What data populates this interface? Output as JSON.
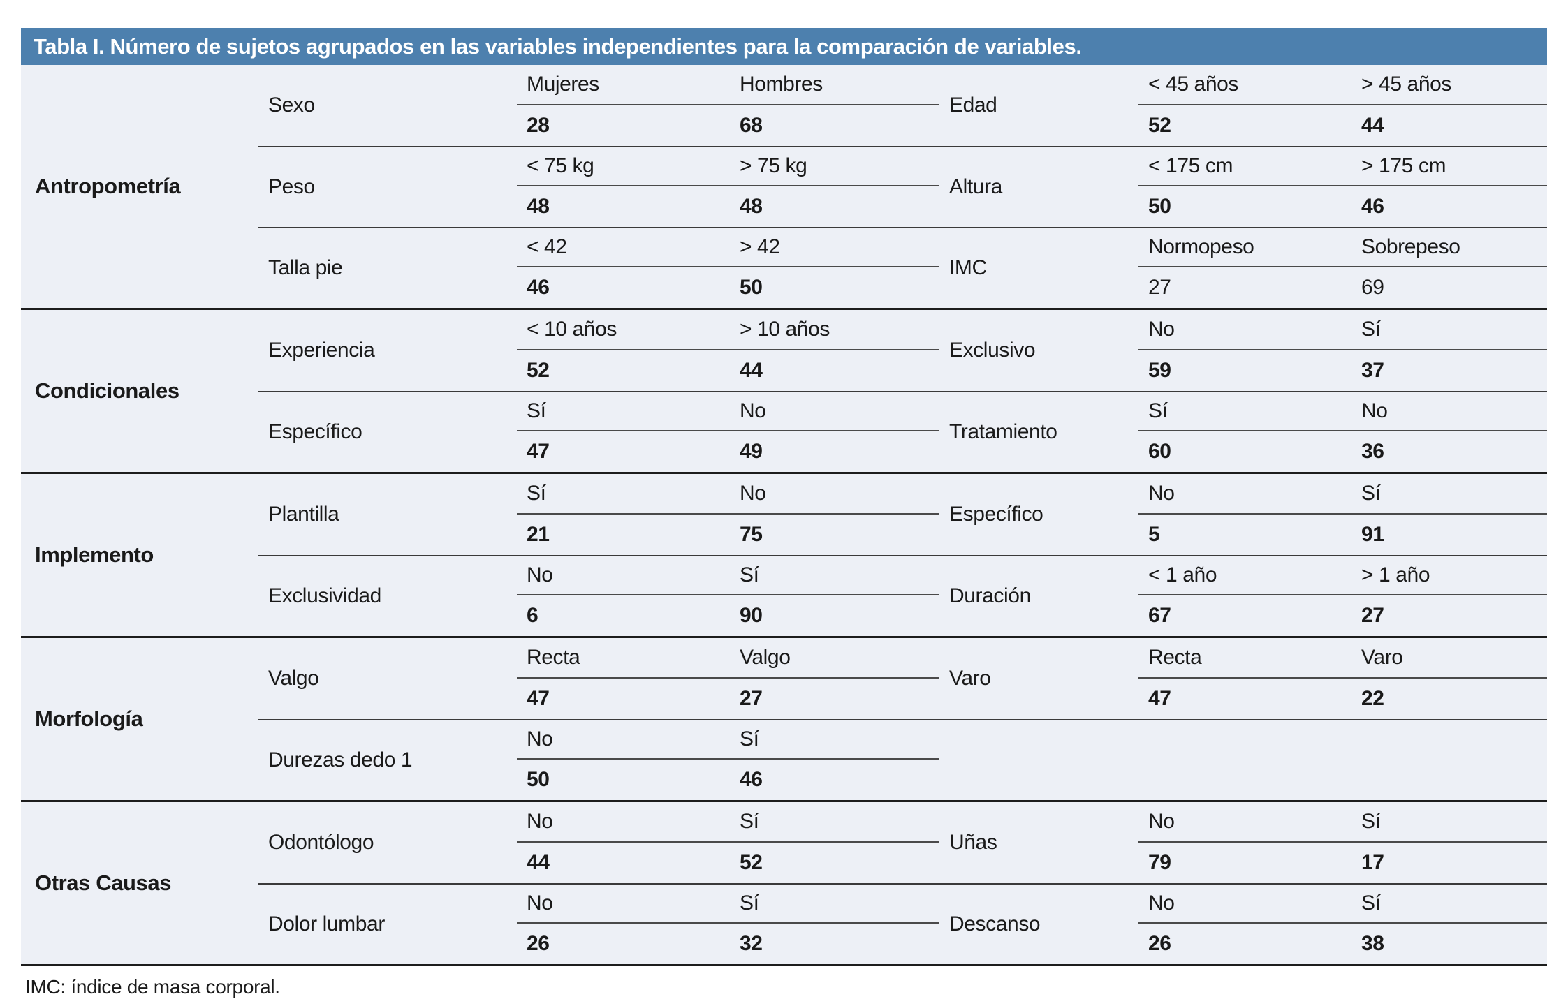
{
  "title": "Tabla I. Número de sujetos agrupados en las variables independientes para la comparación de variables.",
  "footnote": "IMC: índice de masa corporal.",
  "colors": {
    "header_bg": "#4D80AE",
    "header_text": "#ffffff",
    "body_bg": "#EDF0F6",
    "text": "#1a1a1a",
    "line_group": "#1d1d1d",
    "line_row": "#3a3a3a",
    "line_mid": "#4a4a4a"
  },
  "table": {
    "groups": [
      {
        "name": "Antropometría",
        "rows": [
          {
            "left": {
              "variable": "Sexo",
              "labels": [
                "Mujeres",
                "Hombres"
              ],
              "values": [
                "28",
                "68"
              ]
            },
            "right": {
              "variable": "Edad",
              "labels": [
                "< 45 años",
                "> 45 años"
              ],
              "values": [
                "52",
                "44"
              ]
            }
          },
          {
            "left": {
              "variable": "Peso",
              "labels": [
                "< 75 kg",
                "> 75 kg"
              ],
              "values": [
                "48",
                "48"
              ]
            },
            "right": {
              "variable": "Altura",
              "labels": [
                "< 175 cm",
                "> 175 cm"
              ],
              "values": [
                "50",
                "46"
              ]
            }
          },
          {
            "left": {
              "variable": "Talla pie",
              "labels": [
                "< 42",
                "> 42"
              ],
              "values": [
                "46",
                "50"
              ]
            },
            "right": {
              "variable": "IMC",
              "labels": [
                "Normopeso",
                "Sobrepeso"
              ],
              "values": [
                "27",
                "69"
              ],
              "values_bold": false
            }
          }
        ]
      },
      {
        "name": "Condicionales",
        "rows": [
          {
            "left": {
              "variable": "Experiencia",
              "labels": [
                "< 10 años",
                "> 10 años"
              ],
              "values": [
                "52",
                "44"
              ]
            },
            "right": {
              "variable": "Exclusivo",
              "labels": [
                "No",
                "Sí"
              ],
              "values": [
                "59",
                "37"
              ]
            }
          },
          {
            "left": {
              "variable": "Específico",
              "labels": [
                "Sí",
                "No"
              ],
              "values": [
                "47",
                "49"
              ]
            },
            "right": {
              "variable": "Tratamiento",
              "labels": [
                "Sí",
                "No"
              ],
              "values": [
                "60",
                "36"
              ]
            }
          }
        ]
      },
      {
        "name": "Implemento",
        "rows": [
          {
            "left": {
              "variable": "Plantilla",
              "labels": [
                "Sí",
                "No"
              ],
              "values": [
                "21",
                "75"
              ]
            },
            "right": {
              "variable": "Específico",
              "labels": [
                "No",
                "Sí"
              ],
              "values": [
                "5",
                "91"
              ]
            }
          },
          {
            "left": {
              "variable": "Exclusividad",
              "labels": [
                "No",
                "Sí"
              ],
              "values": [
                "6",
                "90"
              ]
            },
            "right": {
              "variable": "Duración",
              "labels": [
                "< 1 año",
                "> 1 año"
              ],
              "values": [
                "67",
                "27"
              ]
            }
          }
        ]
      },
      {
        "name": "Morfología",
        "rows": [
          {
            "left": {
              "variable": "Valgo",
              "labels": [
                "Recta",
                "Valgo"
              ],
              "values": [
                "47",
                "27"
              ]
            },
            "right": {
              "variable": "Varo",
              "labels": [
                "Recta",
                "Varo"
              ],
              "values": [
                "47",
                "22"
              ]
            }
          },
          {
            "left": {
              "variable": "Durezas dedo 1",
              "labels": [
                "No",
                "Sí"
              ],
              "values": [
                "50",
                "46"
              ]
            },
            "right": null
          }
        ]
      },
      {
        "name": "Otras Causas",
        "rows": [
          {
            "left": {
              "variable": "Odontólogo",
              "labels": [
                "No",
                "Sí"
              ],
              "values": [
                "44",
                "52"
              ]
            },
            "right": {
              "variable": "Uñas",
              "labels": [
                "No",
                "Sí"
              ],
              "values": [
                "79",
                "17"
              ]
            }
          },
          {
            "left": {
              "variable": "Dolor lumbar",
              "labels": [
                "No",
                "Sí"
              ],
              "values": [
                "26",
                "32"
              ]
            },
            "right": {
              "variable": "Descanso",
              "labels": [
                "No",
                "Sí"
              ],
              "values": [
                "26",
                "38"
              ]
            }
          }
        ]
      }
    ]
  }
}
